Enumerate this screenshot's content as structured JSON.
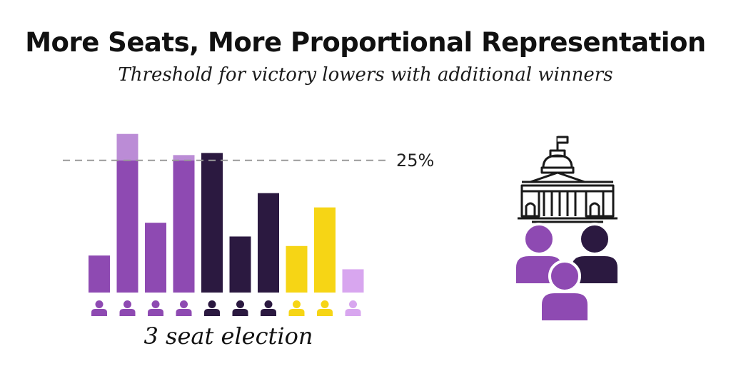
{
  "chart_data": {
    "type": "bar",
    "title": "More Seats, More Proportional Representation",
    "subtitle": "Threshold for victory lowers with additional winners",
    "xlabel": "3 seat election",
    "ylabel": "",
    "ylim": [
      0,
      30.5
    ],
    "reference_line": {
      "value": 25,
      "label": "25%",
      "style": "dashed"
    },
    "grid": false,
    "bars": [
      {
        "value": 7.0,
        "color": "#8e4ab2"
      },
      {
        "value": 30.0,
        "color": "#8e4ab2",
        "threshold_value": 25,
        "excess_color": "#bb8cd6"
      },
      {
        "value": 13.2,
        "color": "#8e4ab2"
      },
      {
        "value": 26.0,
        "color": "#8e4ab2",
        "threshold_value": 25,
        "excess_color": "#bb8cd6"
      },
      {
        "value": 26.4,
        "color": "#2b1940"
      },
      {
        "value": 10.6,
        "color": "#2b1940"
      },
      {
        "value": 18.8,
        "color": "#2b1940"
      },
      {
        "value": 8.8,
        "color": "#f6d515"
      },
      {
        "value": 16.1,
        "color": "#f6d515"
      },
      {
        "value": 4.4,
        "color": "#d8a6ef"
      }
    ]
  },
  "icons": {
    "voter": "person-icon",
    "legislature": "capitol-building-icon",
    "winners": [
      {
        "name": "winner-person-icon",
        "color": "#8e4ab2"
      },
      {
        "name": "winner-person-icon",
        "color": "#2b1940"
      },
      {
        "name": "winner-person-icon",
        "color": "#8e4ab2"
      }
    ]
  }
}
